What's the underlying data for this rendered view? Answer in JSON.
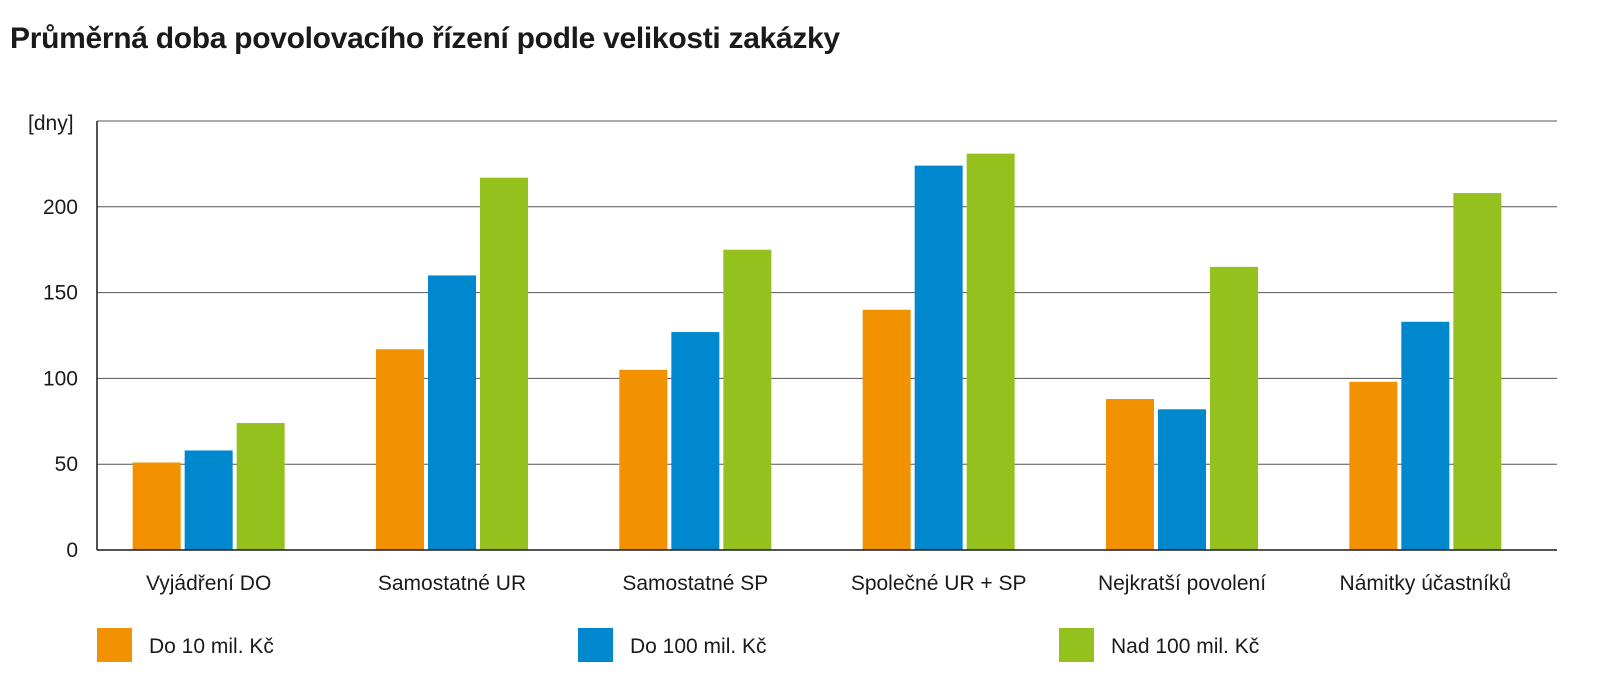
{
  "title": "Průměrná doba povolovacího řízení podle velikosti zakázky",
  "chart_data": {
    "type": "bar",
    "title": "Průměrná doba povolovacího řízení podle velikosti zakázky",
    "ylabel": "[dny]",
    "xlabel": "",
    "ylim": [
      0,
      250
    ],
    "yticks": [
      {
        "value": 0,
        "label": "0"
      },
      {
        "value": 50,
        "label": "50"
      },
      {
        "value": 100,
        "label": "100"
      },
      {
        "value": 150,
        "label": "150"
      },
      {
        "value": 200,
        "label": "200"
      }
    ],
    "grid": true,
    "legend_position": "bottom",
    "categories": [
      "Vyjádření DO",
      "Samostatné UR",
      "Samostatné SP",
      "Společné UR + SP",
      "Nejkratší povolení",
      "Námitky účastníků"
    ],
    "series": [
      {
        "name": "Do 10 mil. Kč",
        "color": "#f39200",
        "values": [
          51,
          117,
          105,
          140,
          88,
          98
        ]
      },
      {
        "name": "Do 100 mil. Kč",
        "color": "#0088cf",
        "values": [
          58,
          160,
          127,
          224,
          82,
          133
        ]
      },
      {
        "name": "Nad 100 mil. Kč",
        "color": "#95c11f",
        "values": [
          74,
          217,
          175,
          231,
          165,
          208
        ]
      }
    ]
  }
}
